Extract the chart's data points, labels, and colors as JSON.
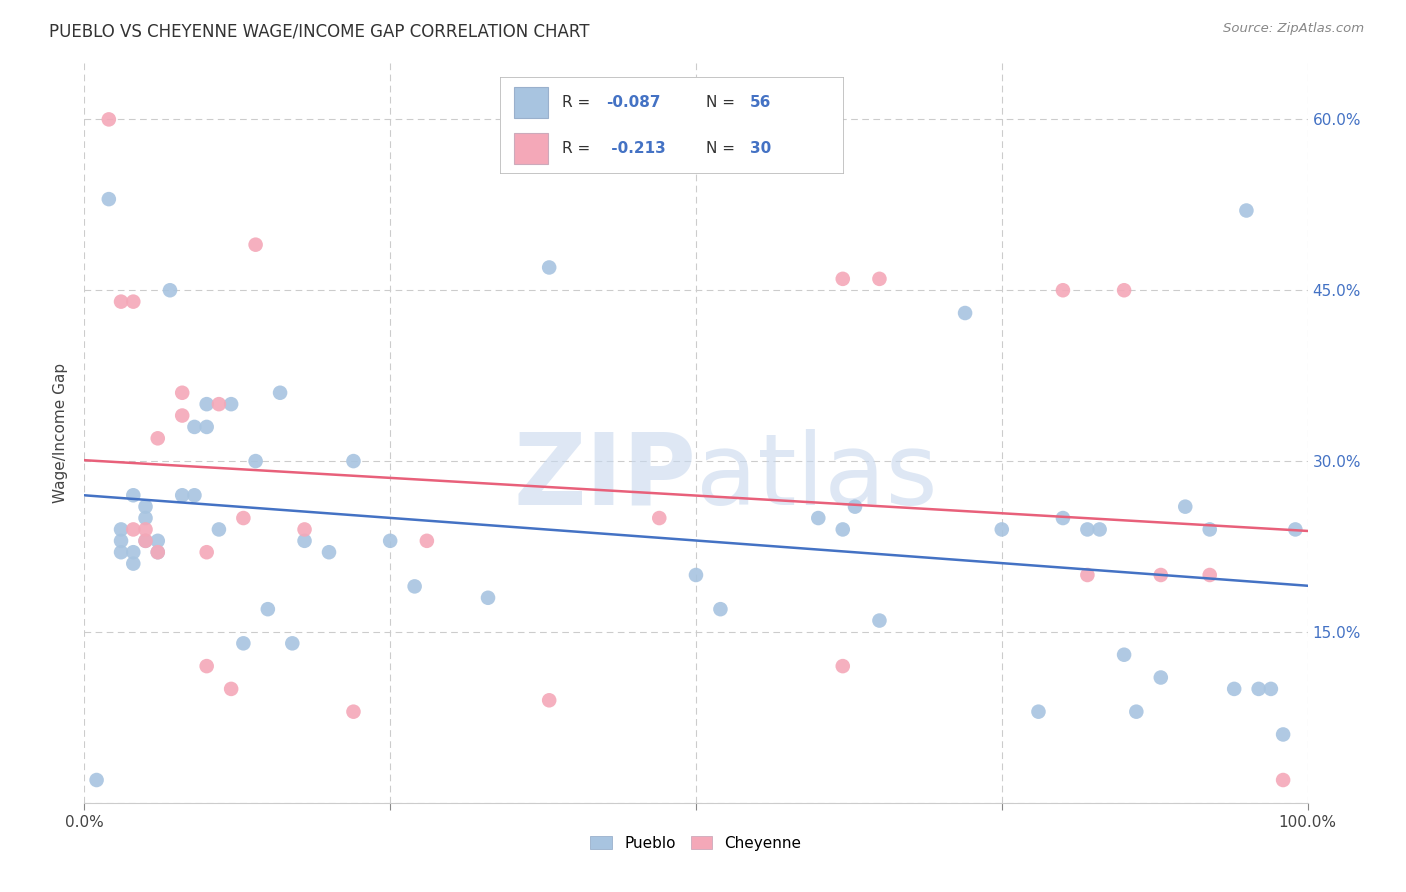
{
  "title": "PUEBLO VS CHEYENNE WAGE/INCOME GAP CORRELATION CHART",
  "source": "Source: ZipAtlas.com",
  "ylabel": "Wage/Income Gap",
  "xlim": [
    0,
    1
  ],
  "ylim": [
    0,
    0.65
  ],
  "pueblo_color": "#a8c4e0",
  "cheyenne_color": "#f4a8b8",
  "pueblo_line_color": "#4472c4",
  "cheyenne_line_color": "#e8607a",
  "legend_text_color": "#4472c4",
  "pueblo_R": "-0.087",
  "pueblo_N": "56",
  "cheyenne_R": "-0.213",
  "cheyenne_N": "30",
  "pueblo_x": [
    0.01,
    0.02,
    0.03,
    0.03,
    0.03,
    0.04,
    0.04,
    0.04,
    0.05,
    0.05,
    0.05,
    0.06,
    0.06,
    0.07,
    0.08,
    0.09,
    0.09,
    0.1,
    0.1,
    0.11,
    0.12,
    0.13,
    0.14,
    0.15,
    0.16,
    0.17,
    0.18,
    0.2,
    0.22,
    0.25,
    0.27,
    0.33,
    0.38,
    0.5,
    0.52,
    0.6,
    0.62,
    0.63,
    0.65,
    0.72,
    0.75,
    0.78,
    0.8,
    0.82,
    0.83,
    0.85,
    0.86,
    0.88,
    0.9,
    0.92,
    0.94,
    0.95,
    0.96,
    0.97,
    0.98,
    0.99
  ],
  "pueblo_y": [
    0.02,
    0.53,
    0.22,
    0.23,
    0.24,
    0.21,
    0.22,
    0.27,
    0.23,
    0.25,
    0.26,
    0.22,
    0.23,
    0.45,
    0.27,
    0.27,
    0.33,
    0.33,
    0.35,
    0.24,
    0.35,
    0.14,
    0.3,
    0.17,
    0.36,
    0.14,
    0.23,
    0.22,
    0.3,
    0.23,
    0.19,
    0.18,
    0.47,
    0.2,
    0.17,
    0.25,
    0.24,
    0.26,
    0.16,
    0.43,
    0.24,
    0.08,
    0.25,
    0.24,
    0.24,
    0.13,
    0.08,
    0.11,
    0.26,
    0.24,
    0.1,
    0.52,
    0.1,
    0.1,
    0.06,
    0.24
  ],
  "cheyenne_x": [
    0.02,
    0.03,
    0.04,
    0.04,
    0.05,
    0.05,
    0.06,
    0.06,
    0.08,
    0.08,
    0.1,
    0.11,
    0.12,
    0.13,
    0.14,
    0.18,
    0.22,
    0.28,
    0.38,
    0.47,
    0.62,
    0.65,
    0.8,
    0.82,
    0.85,
    0.88,
    0.92,
    0.98,
    0.62,
    0.1
  ],
  "cheyenne_y": [
    0.6,
    0.44,
    0.44,
    0.24,
    0.23,
    0.24,
    0.22,
    0.32,
    0.34,
    0.36,
    0.22,
    0.35,
    0.1,
    0.25,
    0.49,
    0.24,
    0.08,
    0.23,
    0.09,
    0.25,
    0.12,
    0.46,
    0.45,
    0.2,
    0.45,
    0.2,
    0.2,
    0.02,
    0.46,
    0.12
  ],
  "watermark": "ZIPatlas",
  "background_color": "#ffffff",
  "grid_color": "#cccccc"
}
